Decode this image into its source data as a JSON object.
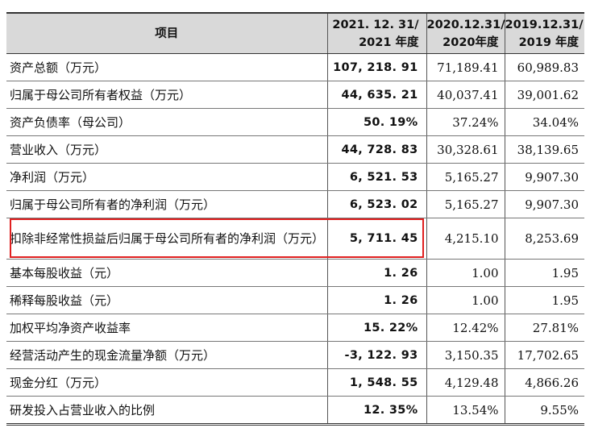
{
  "header": {
    "item": "项目",
    "col2021_line1": "2021. 12. 31/",
    "col2021_line2": "2021 年度",
    "col2020_line1": "2020.12.31/",
    "col2020_line2": "2020年度",
    "col2019_line1": "2019.12.31/",
    "col2019_line2": "2019 年度"
  },
  "rows": [
    {
      "label": "资产总额（万元）",
      "v2021": "107, 218. 91",
      "v2020": "71,189.41",
      "v2019": "60,989.83"
    },
    {
      "label": "归属于母公司所有者权益（万元）",
      "v2021": "44, 635. 21",
      "v2020": "40,037.41",
      "v2019": "39,001.62"
    },
    {
      "label": "资产负债率（母公司）",
      "v2021": "50. 19%",
      "v2020": "37.24%",
      "v2019": "34.04%"
    },
    {
      "label": "营业收入（万元）",
      "v2021": "44, 728. 83",
      "v2020": "30,328.61",
      "v2019": "38,139.65"
    },
    {
      "label": "净利润（万元）",
      "v2021": "6, 521. 53",
      "v2020": "5,165.27",
      "v2019": "9,907.30"
    },
    {
      "label": "归属于母公司所有者的净利润（万元）",
      "v2021": "6, 523. 02",
      "v2020": "5,165.27",
      "v2019": "9,907.30"
    },
    {
      "label": "扣除非经常性损益后归属于母公司所有者的净利润（万元）",
      "v2021": "5, 711. 45",
      "v2020": "4,215.10",
      "v2019": "8,253.69",
      "highlighted": true
    },
    {
      "label": "基本每股收益（元）",
      "v2021": "1. 26",
      "v2020": "1.00",
      "v2019": "1.95"
    },
    {
      "label": "稀释每股收益（元）",
      "v2021": "1. 26",
      "v2020": "1.00",
      "v2019": "1.95"
    },
    {
      "label": "加权平均净资产收益率",
      "v2021": "15. 22%",
      "v2020": "12.42%",
      "v2019": "27.81%"
    },
    {
      "label": "经营活动产生的现金流量净额（万元）",
      "v2021": "-3, 122. 93",
      "v2020": "3,150.35",
      "v2019": "17,702.65"
    },
    {
      "label": "现金分红（万元）",
      "v2021": "1, 548. 55",
      "v2020": "4,129.48",
      "v2019": "4,866.26"
    },
    {
      "label": "研发投入占营业收入的比例",
      "v2021": "12. 35%",
      "v2020": "13.54%",
      "v2019": "9.55%"
    }
  ],
  "highlight_color": "#e02020",
  "header_bg": "#d9d9d9"
}
